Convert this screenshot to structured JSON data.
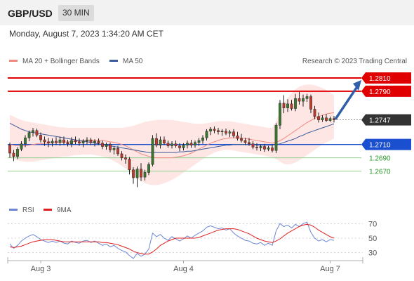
{
  "header": {
    "pair": "GBP/USD",
    "timeframe": "30 MIN"
  },
  "datetime": "Monday, August 7, 2023 1:34:20 AM CET",
  "legend": {
    "item1": {
      "label": "MA 20 + Bollinger Bands",
      "color": "#f08a80"
    },
    "item2": {
      "label": "MA 50",
      "color": "#3b5b9a"
    },
    "credit": "Research © 2023 Trading Central"
  },
  "rsi_legend": {
    "item1": {
      "label": "RSI",
      "color": "#6b86d6"
    },
    "item2": {
      "label": "9MA",
      "color": "#e02020"
    }
  },
  "chart_data": [
    {
      "type": "candlestick",
      "title": "GBP/USD",
      "ylim": [
        1.264,
        1.283
      ],
      "levels": [
        {
          "label": "1.2810",
          "value": 1.281,
          "color": "#e00000",
          "kind": "resistance"
        },
        {
          "label": "1.2790",
          "value": 1.279,
          "color": "#e00000",
          "kind": "resistance"
        },
        {
          "label": "1.2747",
          "value": 1.2747,
          "color": "#333333",
          "kind": "last"
        },
        {
          "label": "1.2710",
          "value": 1.271,
          "color": "#1a4fd0",
          "kind": "pivot"
        },
        {
          "label": "1.2690",
          "value": 1.269,
          "color": "#2a9a2a",
          "kind": "support"
        },
        {
          "label": "1.2670",
          "value": 1.267,
          "color": "#2a9a2a",
          "kind": "support"
        }
      ],
      "x_ticks": [
        "Aug 3",
        "Aug 4",
        "Aug 7"
      ],
      "x_tick_index": [
        8,
        45,
        83
      ],
      "candles": [
        [
          1.2709,
          1.2713,
          1.269,
          1.2697
        ],
        [
          1.2697,
          1.2702,
          1.2685,
          1.2692
        ],
        [
          1.2692,
          1.2706,
          1.2688,
          1.2703
        ],
        [
          1.2703,
          1.2715,
          1.27,
          1.2711
        ],
        [
          1.2711,
          1.2724,
          1.2706,
          1.272
        ],
        [
          1.272,
          1.2731,
          1.2715,
          1.2728
        ],
        [
          1.2728,
          1.2735,
          1.2722,
          1.2731
        ],
        [
          1.2731,
          1.2734,
          1.2721,
          1.2724
        ],
        [
          1.2724,
          1.2728,
          1.2713,
          1.2717
        ],
        [
          1.2717,
          1.2722,
          1.2708,
          1.2714
        ],
        [
          1.2714,
          1.272,
          1.2706,
          1.2712
        ],
        [
          1.2712,
          1.2719,
          1.2707,
          1.2715
        ],
        [
          1.2715,
          1.2721,
          1.2709,
          1.2713
        ],
        [
          1.2713,
          1.2722,
          1.2708,
          1.2717
        ],
        [
          1.2717,
          1.2722,
          1.2709,
          1.2713
        ],
        [
          1.2713,
          1.2717,
          1.2707,
          1.2711
        ],
        [
          1.2711,
          1.2721,
          1.2706,
          1.2716
        ],
        [
          1.2716,
          1.2722,
          1.271,
          1.2714
        ],
        [
          1.2714,
          1.2719,
          1.2708,
          1.2712
        ],
        [
          1.2712,
          1.2718,
          1.2706,
          1.2715
        ],
        [
          1.2715,
          1.2721,
          1.271,
          1.2717
        ],
        [
          1.2717,
          1.272,
          1.2709,
          1.2713
        ],
        [
          1.2713,
          1.2718,
          1.2707,
          1.2715
        ],
        [
          1.2715,
          1.2719,
          1.2709,
          1.2712
        ],
        [
          1.2712,
          1.2716,
          1.2703,
          1.2707
        ],
        [
          1.2707,
          1.2713,
          1.2702,
          1.271
        ],
        [
          1.271,
          1.2713,
          1.2698,
          1.2702
        ],
        [
          1.2702,
          1.2707,
          1.2695,
          1.2704
        ],
        [
          1.2704,
          1.2708,
          1.2693,
          1.2696
        ],
        [
          1.2696,
          1.27,
          1.2686,
          1.269
        ],
        [
          1.269,
          1.2695,
          1.2681,
          1.2688
        ],
        [
          1.2688,
          1.2691,
          1.2665,
          1.2672
        ],
        [
          1.2672,
          1.2676,
          1.2651,
          1.266
        ],
        [
          1.266,
          1.2677,
          1.2646,
          1.2673
        ],
        [
          1.2673,
          1.2682,
          1.2655,
          1.2661
        ],
        [
          1.2661,
          1.2672,
          1.2656,
          1.2668
        ],
        [
          1.2668,
          1.2683,
          1.2664,
          1.268
        ],
        [
          1.268,
          1.2724,
          1.2677,
          1.2719
        ],
        [
          1.2719,
          1.2727,
          1.2706,
          1.2709
        ],
        [
          1.2709,
          1.2722,
          1.2704,
          1.2717
        ],
        [
          1.2717,
          1.2722,
          1.2709,
          1.2712
        ],
        [
          1.2712,
          1.2716,
          1.2705,
          1.2708
        ],
        [
          1.2708,
          1.2715,
          1.2704,
          1.2711
        ],
        [
          1.2711,
          1.2716,
          1.2705,
          1.2708
        ],
        [
          1.2708,
          1.2712,
          1.27,
          1.2705
        ],
        [
          1.2705,
          1.2712,
          1.2701,
          1.2709
        ],
        [
          1.2709,
          1.2716,
          1.2704,
          1.2712
        ],
        [
          1.2712,
          1.2717,
          1.2705,
          1.2709
        ],
        [
          1.2709,
          1.2716,
          1.2705,
          1.2713
        ],
        [
          1.2713,
          1.272,
          1.2708,
          1.2716
        ],
        [
          1.2716,
          1.2724,
          1.2711,
          1.272
        ],
        [
          1.272,
          1.2733,
          1.2716,
          1.273
        ],
        [
          1.273,
          1.2736,
          1.2724,
          1.2733
        ],
        [
          1.2733,
          1.2737,
          1.2727,
          1.2731
        ],
        [
          1.2731,
          1.2735,
          1.2725,
          1.2729
        ],
        [
          1.2729,
          1.2733,
          1.2723,
          1.273
        ],
        [
          1.273,
          1.2734,
          1.2724,
          1.2727
        ],
        [
          1.2727,
          1.2732,
          1.2721,
          1.2729
        ],
        [
          1.2729,
          1.2733,
          1.272,
          1.2723
        ],
        [
          1.2723,
          1.2729,
          1.2716,
          1.2719
        ],
        [
          1.2719,
          1.2726,
          1.2713,
          1.2716
        ],
        [
          1.2716,
          1.272,
          1.2709,
          1.2713
        ],
        [
          1.2713,
          1.272,
          1.2708,
          1.2711
        ],
        [
          1.2711,
          1.2715,
          1.2703,
          1.2706
        ],
        [
          1.2706,
          1.2712,
          1.2701,
          1.2705
        ],
        [
          1.2705,
          1.271,
          1.27,
          1.2707
        ],
        [
          1.2707,
          1.2711,
          1.2699,
          1.2703
        ],
        [
          1.2703,
          1.2708,
          1.27,
          1.2705
        ],
        [
          1.2705,
          1.271,
          1.2698,
          1.2701
        ],
        [
          1.2701,
          1.2742,
          1.2697,
          1.2739
        ],
        [
          1.2739,
          1.2777,
          1.2733,
          1.2772
        ],
        [
          1.2772,
          1.2784,
          1.2757,
          1.2765
        ],
        [
          1.2765,
          1.2778,
          1.2759,
          1.2771
        ],
        [
          1.2771,
          1.2777,
          1.2761,
          1.2764
        ],
        [
          1.2764,
          1.2786,
          1.276,
          1.2779
        ],
        [
          1.2779,
          1.2789,
          1.277,
          1.2775
        ],
        [
          1.2775,
          1.2785,
          1.2767,
          1.2779
        ],
        [
          1.2779,
          1.2786,
          1.2774,
          1.2782
        ],
        [
          1.2782,
          1.2785,
          1.2757,
          1.2763
        ],
        [
          1.2763,
          1.2768,
          1.2748,
          1.2752
        ],
        [
          1.2752,
          1.2758,
          1.2743,
          1.2747
        ],
        [
          1.2747,
          1.2754,
          1.2744,
          1.275
        ],
        [
          1.275,
          1.2756,
          1.2744,
          1.2746
        ],
        [
          1.2746,
          1.2752,
          1.2744,
          1.2749
        ],
        [
          1.2749,
          1.2753,
          1.2743,
          1.2747
        ]
      ],
      "ma20": [
        1.271,
        1.2709,
        1.2708,
        1.2708,
        1.2708,
        1.2709,
        1.271,
        1.2711,
        1.2711,
        1.2712,
        1.2712,
        1.2713,
        1.2713,
        1.2713,
        1.2714,
        1.2714,
        1.2714,
        1.2715,
        1.2715,
        1.2716,
        1.2716,
        1.2716,
        1.2716,
        1.2716,
        1.2716,
        1.2715,
        1.2714,
        1.2713,
        1.2712,
        1.271,
        1.2708,
        1.2705,
        1.2702,
        1.2699,
        1.2696,
        1.2694,
        1.2692,
        1.2691,
        1.269,
        1.269,
        1.269,
        1.269,
        1.269,
        1.2691,
        1.2692,
        1.2693,
        1.2695,
        1.2697,
        1.27,
        1.2703,
        1.2706,
        1.2709,
        1.2712,
        1.2714,
        1.2716,
        1.2718,
        1.2719,
        1.272,
        1.272,
        1.272,
        1.272,
        1.2719,
        1.2718,
        1.2717,
        1.2716,
        1.2715,
        1.2714,
        1.2713,
        1.2712,
        1.2713,
        1.2716,
        1.2719,
        1.2723,
        1.2727,
        1.2731,
        1.2735,
        1.2739,
        1.2743,
        1.2746,
        1.2749,
        1.2752,
        1.2754,
        1.2756,
        1.2757,
        1.2758
      ],
      "ma50": [
        1.2742,
        1.2739,
        1.2736,
        1.2733,
        1.2731,
        1.2729,
        1.2728,
        1.2727,
        1.2726,
        1.2725,
        1.2724,
        1.2723,
        1.2722,
        1.2721,
        1.272,
        1.2719,
        1.2718,
        1.2717,
        1.2716,
        1.2715,
        1.2714,
        1.2713,
        1.2712,
        1.2711,
        1.271,
        1.2709,
        1.2708,
        1.2707,
        1.2706,
        1.2705,
        1.2704,
        1.2703,
        1.2702,
        1.2701,
        1.27,
        1.2699,
        1.2698,
        1.2698,
        1.2698,
        1.2698,
        1.2698,
        1.2698,
        1.2698,
        1.2698,
        1.2699,
        1.2699,
        1.27,
        1.27,
        1.2701,
        1.2702,
        1.2703,
        1.2704,
        1.2705,
        1.2706,
        1.2707,
        1.2708,
        1.2709,
        1.2709,
        1.271,
        1.271,
        1.271,
        1.271,
        1.271,
        1.271,
        1.2709,
        1.2709,
        1.2709,
        1.2709,
        1.2709,
        1.271,
        1.2711,
        1.2713,
        1.2715,
        1.2717,
        1.2719,
        1.2722,
        1.2724,
        1.2727,
        1.2729,
        1.2731,
        1.2733,
        1.2735,
        1.2737,
        1.2739,
        1.2741
      ],
      "bb_upper": [
        1.2755,
        1.2752,
        1.2749,
        1.2747,
        1.2745,
        1.2744,
        1.2743,
        1.2742,
        1.2741,
        1.274,
        1.2739,
        1.2738,
        1.2737,
        1.2736,
        1.2736,
        1.2735,
        1.2735,
        1.2735,
        1.2735,
        1.2735,
        1.2735,
        1.2735,
        1.2735,
        1.2735,
        1.2735,
        1.2735,
        1.2735,
        1.2735,
        1.2735,
        1.2735,
        1.2736,
        1.2737,
        1.2738,
        1.274,
        1.2742,
        1.2744,
        1.2745,
        1.2746,
        1.2747,
        1.2747,
        1.2747,
        1.2747,
        1.2747,
        1.2746,
        1.2745,
        1.2744,
        1.2743,
        1.2742,
        1.2741,
        1.2741,
        1.2741,
        1.2742,
        1.2743,
        1.2744,
        1.2745,
        1.2745,
        1.2745,
        1.2745,
        1.2744,
        1.2743,
        1.2742,
        1.2741,
        1.274,
        1.2739,
        1.2738,
        1.2737,
        1.2736,
        1.2735,
        1.2735,
        1.2745,
        1.276,
        1.2772,
        1.278,
        1.2787,
        1.2793,
        1.2797,
        1.2799,
        1.28,
        1.28,
        1.2799,
        1.2797,
        1.2795,
        1.2792,
        1.2788,
        1.2784
      ],
      "bb_lower": [
        1.269,
        1.2688,
        1.2686,
        1.2685,
        1.2684,
        1.2684,
        1.2684,
        1.2685,
        1.2686,
        1.2687,
        1.2688,
        1.2689,
        1.269,
        1.2691,
        1.2692,
        1.2692,
        1.2693,
        1.2694,
        1.2694,
        1.2695,
        1.2695,
        1.2695,
        1.2694,
        1.2693,
        1.2692,
        1.269,
        1.2688,
        1.2685,
        1.2682,
        1.2678,
        1.2674,
        1.2669,
        1.2664,
        1.2659,
        1.2655,
        1.2652,
        1.265,
        1.2649,
        1.2649,
        1.265,
        1.2652,
        1.2654,
        1.2657,
        1.266,
        1.2664,
        1.2668,
        1.2672,
        1.2676,
        1.268,
        1.2684,
        1.2688,
        1.2692,
        1.2695,
        1.2698,
        1.27,
        1.2701,
        1.2702,
        1.2702,
        1.2701,
        1.27,
        1.2699,
        1.2698,
        1.2697,
        1.2696,
        1.2695,
        1.2694,
        1.2693,
        1.2692,
        1.2691,
        1.2688,
        1.2684,
        1.2681,
        1.268,
        1.2681,
        1.2683,
        1.2686,
        1.269,
        1.2694,
        1.2698,
        1.2702,
        1.2706,
        1.271,
        1.2713,
        1.2716,
        1.2719
      ]
    },
    {
      "type": "line",
      "title": "RSI",
      "ylim": [
        20,
        80
      ],
      "y_ticks": [
        "70",
        "50",
        "30"
      ],
      "y_tick_values": [
        70,
        50,
        30
      ],
      "series": [
        {
          "name": "RSI",
          "color": "#6b86d6",
          "values": [
            42,
            36,
            40,
            46,
            50,
            53,
            55,
            52,
            48,
            46,
            44,
            46,
            44,
            46,
            43,
            42,
            46,
            44,
            43,
            46,
            47,
            44,
            46,
            43,
            40,
            42,
            38,
            40,
            36,
            33,
            31,
            26,
            22,
            29,
            25,
            28,
            35,
            57,
            52,
            55,
            50,
            47,
            52,
            49,
            46,
            49,
            53,
            50,
            54,
            57,
            60,
            65,
            67,
            65,
            63,
            64,
            61,
            63,
            57,
            53,
            50,
            47,
            46,
            43,
            42,
            44,
            40,
            43,
            40,
            60,
            70,
            66,
            68,
            64,
            69,
            66,
            70,
            72,
            58,
            50,
            46,
            48,
            45,
            48,
            47
          ]
        },
        {
          "name": "9MA",
          "color": "#e02020",
          "values": [
            38,
            37,
            38,
            39,
            41,
            43,
            45,
            46,
            47,
            48,
            48,
            48,
            47,
            46,
            45,
            45,
            45,
            45,
            45,
            45,
            45,
            45,
            45,
            45,
            44,
            44,
            43,
            42,
            41,
            39,
            37,
            35,
            32,
            30,
            29,
            28,
            28,
            31,
            35,
            40,
            43,
            46,
            48,
            50,
            50,
            50,
            50,
            50,
            50,
            51,
            53,
            55,
            57,
            59,
            61,
            62,
            63,
            63,
            63,
            62,
            60,
            58,
            56,
            53,
            50,
            48,
            46,
            45,
            44,
            46,
            49,
            53,
            57,
            60,
            63,
            66,
            68,
            69,
            68,
            65,
            61,
            58,
            55,
            52,
            50
          ]
        }
      ]
    }
  ]
}
